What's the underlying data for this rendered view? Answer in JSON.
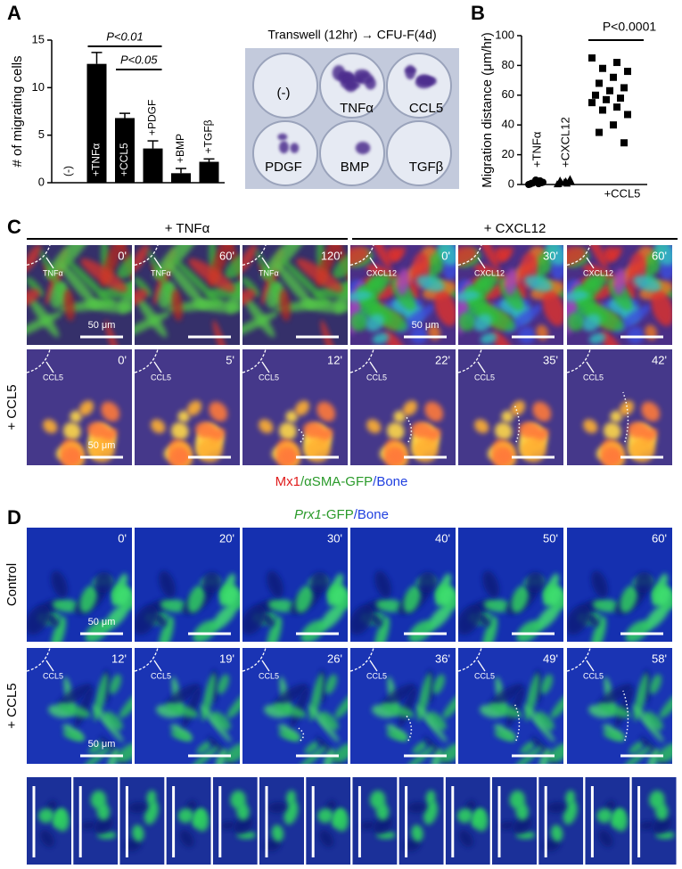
{
  "panel_labels": [
    "A",
    "B",
    "C",
    "D"
  ],
  "chart_data": [
    {
      "type": "bar",
      "ylabel": "# of migrating cells",
      "categories": [
        "(-)",
        "+TNFα",
        "+CCL5",
        "+PDGF",
        "+BMP",
        "+TGFβ"
      ],
      "values": [
        0,
        12.5,
        6.8,
        3.6,
        1,
        2.2
      ],
      "errors": [
        0,
        1.2,
        0.5,
        0.8,
        0.5,
        0.3
      ],
      "color": "#000000",
      "ylim": [
        0,
        15
      ],
      "yticks": [
        0,
        5,
        10,
        15
      ],
      "annotations": [
        "P<0.01",
        "P<0.05"
      ]
    },
    {
      "type": "strip",
      "ylabel": "Migration distance (μm/hr)",
      "categories": [
        "+TNFα",
        "+CXCL12",
        "+CCL5"
      ],
      "markers": [
        "circle",
        "triangle",
        "square"
      ],
      "values": [
        [
          0,
          0.5,
          1,
          1.5,
          2,
          0.8,
          1.2,
          3,
          0.3,
          2.5
        ],
        [
          0.5,
          1,
          1.5,
          2,
          2.5,
          3,
          4,
          1.8,
          0.7,
          2.2
        ],
        [
          85,
          82,
          78,
          76,
          72,
          68,
          65,
          63,
          60,
          58,
          57,
          55,
          52,
          50,
          47,
          40,
          35,
          28
        ]
      ],
      "color": "#000000",
      "ylim": [
        0,
        100
      ],
      "yticks": [
        0,
        20,
        40,
        60,
        80,
        100
      ],
      "annotation": "P<0.0001"
    }
  ],
  "photo": {
    "title": "Transwell (12hr) → CFU-F(4d)",
    "wells": [
      "(-)",
      "TNFα",
      "CCL5",
      "PDGF",
      "BMP",
      "TGFβ"
    ]
  },
  "panel_c": {
    "conditions": [
      "+ TNFα",
      "+ CXCL12"
    ],
    "row_label": "+ CCL5",
    "rows": [
      [
        {
          "time": "0'",
          "marker": "TNFα",
          "scale": "50 μm"
        },
        {
          "time": "60'",
          "marker": "TNFα"
        },
        {
          "time": "120'",
          "marker": "TNFα"
        },
        {
          "time": "0'",
          "marker": "CXCL12",
          "scale": "50 μm"
        },
        {
          "time": "30'",
          "marker": "CXCL12"
        },
        {
          "time": "60'",
          "marker": "CXCL12"
        }
      ],
      [
        {
          "time": "0'",
          "marker": "CCL5",
          "scale": "50 μm"
        },
        {
          "time": "5'",
          "marker": "CCL5"
        },
        {
          "time": "12'",
          "marker": "CCL5"
        },
        {
          "time": "22'",
          "marker": "CCL5"
        },
        {
          "time": "35'",
          "marker": "CCL5"
        },
        {
          "time": "42'",
          "marker": "CCL5"
        }
      ]
    ],
    "legend": [
      "Mx1",
      "/αSMA-GFP",
      "/Bone"
    ]
  },
  "panel_d": {
    "legend": [
      "Prx1",
      "-GFP",
      "/Bone"
    ],
    "row_labels": [
      "Control",
      "+ CCL5"
    ],
    "rows": [
      [
        {
          "time": "0'",
          "scale": "50 μm"
        },
        {
          "time": "20'"
        },
        {
          "time": "30'"
        },
        {
          "time": "40'"
        },
        {
          "time": "50'"
        },
        {
          "time": "60'"
        }
      ],
      [
        {
          "time": "12'",
          "marker": "CCL5",
          "scale": "50 μm"
        },
        {
          "time": "19'",
          "marker": "CCL5"
        },
        {
          "time": "26'",
          "marker": "CCL5"
        },
        {
          "time": "36'",
          "marker": "CCL5"
        },
        {
          "time": "49'",
          "marker": "CCL5"
        },
        {
          "time": "58'",
          "marker": "CCL5"
        }
      ]
    ]
  }
}
